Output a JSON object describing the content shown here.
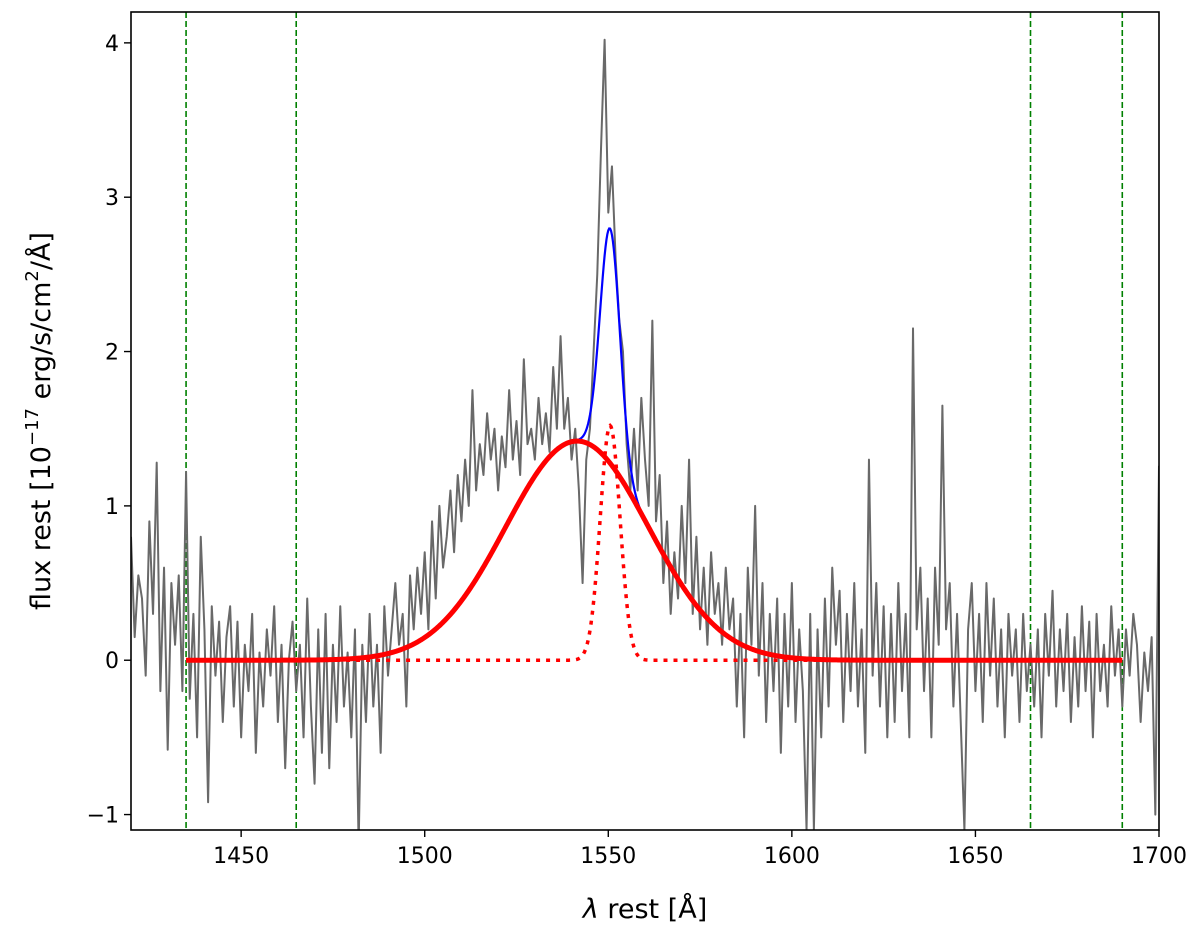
{
  "chart_data": {
    "type": "line",
    "title": "",
    "xlabel": "λ rest [Å]",
    "xlabel_parts": {
      "symbol": "λ",
      "text": " rest [Å]"
    },
    "ylabel": "flux rest [10^-17 erg/s/cm^2/Å]",
    "ylabel_parts": {
      "prefix": "flux rest [10",
      "exp1": "−17",
      "middle": " erg/s/cm",
      "exp2": "2",
      "suffix": "/Å]"
    },
    "xlim": [
      1420,
      1700
    ],
    "ylim": [
      -1.1,
      4.2
    ],
    "grid": false,
    "legend": "none",
    "x_ticks": [
      {
        "value": 1450,
        "label": "1450"
      },
      {
        "value": 1500,
        "label": "1500"
      },
      {
        "value": 1550,
        "label": "1550"
      },
      {
        "value": 1600,
        "label": "1600"
      },
      {
        "value": 1650,
        "label": "1650"
      },
      {
        "value": 1700,
        "label": "1700"
      }
    ],
    "y_ticks": [
      {
        "value": -1,
        "label": "−1"
      },
      {
        "value": 0,
        "label": "0"
      },
      {
        "value": 1,
        "label": "1"
      },
      {
        "value": 2,
        "label": "2"
      },
      {
        "value": 3,
        "label": "3"
      },
      {
        "value": 4,
        "label": "4"
      }
    ],
    "vertical_lines": [
      {
        "x": 1435,
        "color": "#008000",
        "style": "dashed"
      },
      {
        "x": 1465,
        "color": "#008000",
        "style": "dashed"
      },
      {
        "x": 1665,
        "color": "#008000",
        "style": "dashed"
      },
      {
        "x": 1690,
        "color": "#008000",
        "style": "dashed"
      }
    ],
    "spectrum": {
      "color": "#696969",
      "points": [
        [
          1420,
          0.8
        ],
        [
          1421,
          0.15
        ],
        [
          1422,
          0.55
        ],
        [
          1423,
          0.4
        ],
        [
          1424,
          -0.1
        ],
        [
          1425,
          0.9
        ],
        [
          1426,
          0.3
        ],
        [
          1427,
          1.28
        ],
        [
          1428,
          -0.2
        ],
        [
          1429,
          0.6
        ],
        [
          1430,
          -0.58
        ],
        [
          1431,
          0.5
        ],
        [
          1432,
          0.1
        ],
        [
          1433,
          0.55
        ],
        [
          1434,
          -0.2
        ],
        [
          1435,
          1.22
        ],
        [
          1436,
          -0.25
        ],
        [
          1437,
          0.3
        ],
        [
          1438,
          -0.5
        ],
        [
          1439,
          0.8
        ],
        [
          1440,
          0.2
        ],
        [
          1441,
          -0.92
        ],
        [
          1442,
          0.35
        ],
        [
          1443,
          -0.1
        ],
        [
          1444,
          0.25
        ],
        [
          1445,
          -0.4
        ],
        [
          1446,
          0.15
        ],
        [
          1447,
          0.35
        ],
        [
          1448,
          -0.3
        ],
        [
          1449,
          0.25
        ],
        [
          1450,
          -0.5
        ],
        [
          1451,
          0.1
        ],
        [
          1452,
          -0.2
        ],
        [
          1453,
          0.3
        ],
        [
          1454,
          -0.6
        ],
        [
          1455,
          0.05
        ],
        [
          1456,
          -0.3
        ],
        [
          1457,
          0.2
        ],
        [
          1458,
          -0.1
        ],
        [
          1459,
          0.35
        ],
        [
          1460,
          -0.4
        ],
        [
          1461,
          0.1
        ],
        [
          1462,
          -0.7
        ],
        [
          1463,
          0.0
        ],
        [
          1464,
          0.25
        ],
        [
          1465,
          -0.2
        ],
        [
          1466,
          0.1
        ],
        [
          1467,
          -0.5
        ],
        [
          1468,
          0.4
        ],
        [
          1469,
          -0.3
        ],
        [
          1470,
          -0.8
        ],
        [
          1471,
          0.2
        ],
        [
          1472,
          -0.6
        ],
        [
          1473,
          0.3
        ],
        [
          1474,
          -0.7
        ],
        [
          1475,
          0.1
        ],
        [
          1476,
          -0.4
        ],
        [
          1477,
          0.35
        ],
        [
          1478,
          -0.3
        ],
        [
          1479,
          0.05
        ],
        [
          1480,
          -0.5
        ],
        [
          1481,
          0.2
        ],
        [
          1482,
          -1.2
        ],
        [
          1483,
          0.1
        ],
        [
          1484,
          -0.4
        ],
        [
          1485,
          0.3
        ],
        [
          1486,
          -0.3
        ],
        [
          1487,
          0.1
        ],
        [
          1488,
          -0.6
        ],
        [
          1489,
          0.35
        ],
        [
          1490,
          -0.1
        ],
        [
          1491,
          0.2
        ],
        [
          1492,
          0.5
        ],
        [
          1493,
          0.1
        ],
        [
          1494,
          0.3
        ],
        [
          1495,
          -0.3
        ],
        [
          1496,
          0.55
        ],
        [
          1497,
          0.2
        ],
        [
          1498,
          0.6
        ],
        [
          1499,
          0.3
        ],
        [
          1500,
          0.7
        ],
        [
          1501,
          0.2
        ],
        [
          1502,
          0.9
        ],
        [
          1503,
          0.4
        ],
        [
          1504,
          1.0
        ],
        [
          1505,
          0.6
        ],
        [
          1506,
          0.8
        ],
        [
          1507,
          1.1
        ],
        [
          1508,
          0.7
        ],
        [
          1509,
          1.2
        ],
        [
          1510,
          0.9
        ],
        [
          1511,
          1.3
        ],
        [
          1512,
          1.0
        ],
        [
          1513,
          1.75
        ],
        [
          1514,
          1.1
        ],
        [
          1515,
          1.4
        ],
        [
          1516,
          1.2
        ],
        [
          1517,
          1.6
        ],
        [
          1518,
          1.3
        ],
        [
          1519,
          1.5
        ],
        [
          1520,
          1.1
        ],
        [
          1521,
          1.45
        ],
        [
          1522,
          1.25
        ],
        [
          1523,
          1.75
        ],
        [
          1524,
          1.3
        ],
        [
          1525,
          1.55
        ],
        [
          1526,
          1.2
        ],
        [
          1527,
          1.95
        ],
        [
          1528,
          1.4
        ],
        [
          1529,
          1.5
        ],
        [
          1530,
          1.3
        ],
        [
          1531,
          1.7
        ],
        [
          1532,
          1.4
        ],
        [
          1533,
          1.6
        ],
        [
          1534,
          1.35
        ],
        [
          1535,
          1.9
        ],
        [
          1536,
          1.5
        ],
        [
          1537,
          2.1
        ],
        [
          1538,
          1.5
        ],
        [
          1539,
          1.7
        ],
        [
          1540,
          1.3
        ],
        [
          1541,
          1.5
        ],
        [
          1542,
          1.1
        ],
        [
          1543,
          0.5
        ],
        [
          1544,
          1.3
        ],
        [
          1545,
          1.5
        ],
        [
          1546,
          2.0
        ],
        [
          1547,
          2.5
        ],
        [
          1548,
          3.3
        ],
        [
          1549,
          4.02
        ],
        [
          1550,
          2.9
        ],
        [
          1551,
          3.2
        ],
        [
          1552,
          2.6
        ],
        [
          1553,
          2.2
        ],
        [
          1554,
          2.0
        ],
        [
          1555,
          1.4
        ],
        [
          1556,
          1.1
        ],
        [
          1557,
          1.5
        ],
        [
          1558,
          1.1
        ],
        [
          1559,
          1.7
        ],
        [
          1560,
          1.3
        ],
        [
          1561,
          1.0
        ],
        [
          1562,
          2.2
        ],
        [
          1563,
          0.9
        ],
        [
          1564,
          1.2
        ],
        [
          1565,
          0.5
        ],
        [
          1566,
          0.9
        ],
        [
          1567,
          0.3
        ],
        [
          1568,
          0.7
        ],
        [
          1569,
          0.4
        ],
        [
          1570,
          1.0
        ],
        [
          1571,
          0.5
        ],
        [
          1572,
          1.3
        ],
        [
          1573,
          0.3
        ],
        [
          1574,
          0.8
        ],
        [
          1575,
          0.2
        ],
        [
          1576,
          0.6
        ],
        [
          1577,
          0.1
        ],
        [
          1578,
          0.7
        ],
        [
          1579,
          0.3
        ],
        [
          1580,
          0.5
        ],
        [
          1581,
          0.1
        ],
        [
          1582,
          0.6
        ],
        [
          1583,
          0.2
        ],
        [
          1584,
          0.4
        ],
        [
          1585,
          -0.3
        ],
        [
          1586,
          0.3
        ],
        [
          1587,
          -0.5
        ],
        [
          1588,
          0.6
        ],
        [
          1589,
          0.1
        ],
        [
          1590,
          1.0
        ],
        [
          1591,
          -0.1
        ],
        [
          1592,
          0.5
        ],
        [
          1593,
          -0.4
        ],
        [
          1594,
          0.3
        ],
        [
          1595,
          -0.2
        ],
        [
          1596,
          0.4
        ],
        [
          1597,
          -0.6
        ],
        [
          1598,
          0.3
        ],
        [
          1599,
          -0.3
        ],
        [
          1600,
          0.5
        ],
        [
          1601,
          -0.4
        ],
        [
          1602,
          0.2
        ],
        [
          1603,
          -0.2
        ],
        [
          1604,
          -1.1
        ],
        [
          1605,
          0.3
        ],
        [
          1606,
          -1.1
        ],
        [
          1607,
          0.2
        ],
        [
          1608,
          -0.5
        ],
        [
          1609,
          0.4
        ],
        [
          1610,
          -0.3
        ],
        [
          1611,
          0.6
        ],
        [
          1612,
          0.1
        ],
        [
          1613,
          0.45
        ],
        [
          1614,
          -0.4
        ],
        [
          1615,
          0.3
        ],
        [
          1616,
          -0.2
        ],
        [
          1617,
          0.5
        ],
        [
          1618,
          -0.3
        ],
        [
          1619,
          0.2
        ],
        [
          1620,
          -0.6
        ],
        [
          1621,
          1.3
        ],
        [
          1622,
          -0.1
        ],
        [
          1623,
          0.5
        ],
        [
          1624,
          -0.3
        ],
        [
          1625,
          0.35
        ],
        [
          1626,
          -0.5
        ],
        [
          1627,
          0.3
        ],
        [
          1628,
          -0.4
        ],
        [
          1629,
          0.5
        ],
        [
          1630,
          -0.2
        ],
        [
          1631,
          0.3
        ],
        [
          1632,
          -0.5
        ],
        [
          1633,
          2.15
        ],
        [
          1634,
          0.2
        ],
        [
          1635,
          0.6
        ],
        [
          1636,
          -0.2
        ],
        [
          1637,
          0.4
        ],
        [
          1638,
          -0.5
        ],
        [
          1639,
          0.6
        ],
        [
          1640,
          0.1
        ],
        [
          1641,
          1.65
        ],
        [
          1642,
          0.2
        ],
        [
          1643,
          0.5
        ],
        [
          1644,
          -0.3
        ],
        [
          1645,
          0.3
        ],
        [
          1646,
          -0.4
        ],
        [
          1647,
          -1.1
        ],
        [
          1648,
          0.2
        ],
        [
          1649,
          0.5
        ],
        [
          1650,
          -0.2
        ],
        [
          1651,
          0.3
        ],
        [
          1652,
          -0.4
        ],
        [
          1653,
          0.5
        ],
        [
          1654,
          -0.1
        ],
        [
          1655,
          0.4
        ],
        [
          1656,
          -0.3
        ],
        [
          1657,
          0.2
        ],
        [
          1658,
          -0.5
        ],
        [
          1659,
          0.3
        ],
        [
          1660,
          -0.1
        ],
        [
          1661,
          0.2
        ],
        [
          1662,
          -0.4
        ],
        [
          1663,
          0.3
        ],
        [
          1664,
          -0.2
        ],
        [
          1665,
          0.1
        ],
        [
          1666,
          -0.3
        ],
        [
          1667,
          0.2
        ],
        [
          1668,
          -0.5
        ],
        [
          1669,
          0.3
        ],
        [
          1670,
          -0.1
        ],
        [
          1671,
          0.45
        ],
        [
          1672,
          -0.3
        ],
        [
          1673,
          0.2
        ],
        [
          1674,
          -0.2
        ],
        [
          1675,
          0.3
        ],
        [
          1676,
          -0.4
        ],
        [
          1677,
          0.15
        ],
        [
          1678,
          -0.3
        ],
        [
          1679,
          0.35
        ],
        [
          1680,
          -0.2
        ],
        [
          1681,
          0.25
        ],
        [
          1682,
          -0.5
        ],
        [
          1683,
          0.3
        ],
        [
          1684,
          -0.2
        ],
        [
          1685,
          0.1
        ],
        [
          1686,
          -0.3
        ],
        [
          1687,
          0.35
        ],
        [
          1688,
          -0.1
        ],
        [
          1689,
          0.2
        ],
        [
          1690,
          -0.3
        ],
        [
          1691,
          0.2
        ],
        [
          1692,
          -0.1
        ],
        [
          1693,
          0.3
        ],
        [
          1694,
          0.1
        ],
        [
          1695,
          -0.4
        ],
        [
          1696,
          0.05
        ],
        [
          1697,
          -0.2
        ],
        [
          1698,
          0.15
        ],
        [
          1699,
          -1.0
        ],
        [
          1700,
          1.26
        ]
      ]
    },
    "series": [
      {
        "kind": "gaussian-sum",
        "color": "#0000ff",
        "range": [
          1435,
          1690
        ],
        "components": [
          {
            "amplitude": 1.42,
            "center": 1541.5,
            "sigma": 19.5
          },
          {
            "amplitude": 1.52,
            "center": 1550.5,
            "sigma": 2.7
          }
        ]
      },
      {
        "kind": "gaussian",
        "color": "#ff0000",
        "style": "solid-thick",
        "range": [
          1435,
          1690
        ],
        "components": [
          {
            "amplitude": 1.42,
            "center": 1541.5,
            "sigma": 19.5
          }
        ]
      },
      {
        "kind": "gaussian",
        "color": "#ff0000",
        "style": "dotted",
        "range": [
          1435,
          1690
        ],
        "components": [
          {
            "amplitude": 1.52,
            "center": 1550.5,
            "sigma": 2.7
          }
        ]
      }
    ]
  }
}
